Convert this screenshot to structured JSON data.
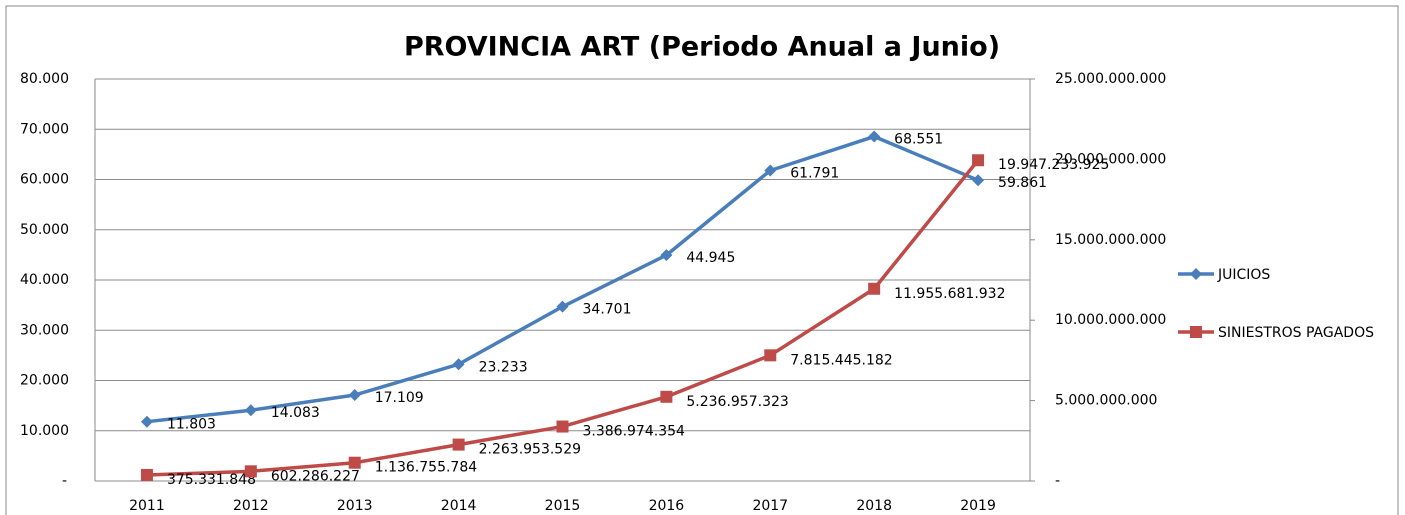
{
  "chart_data": {
    "type": "line",
    "title": "PROVINCIA ART (Periodo  Anual a Junio)",
    "categories": [
      "2011",
      "2012",
      "2013",
      "2014",
      "2015",
      "2016",
      "2017",
      "2018",
      "2019"
    ],
    "series": [
      {
        "name": "JUICIOS",
        "color": "#4a7ebb",
        "marker": "diamond",
        "values": [
          11803,
          14083,
          17109,
          23233,
          34701,
          44945,
          61791,
          68551,
          59861
        ],
        "value_labels": [
          "11.803",
          "14.083",
          "17.109",
          "23.233",
          "34.701",
          "44.945",
          "61.791",
          "68.551",
          "59.861"
        ]
      },
      {
        "name": "SINIESTROS PAGADOS",
        "color": "#be4b48",
        "marker": "square",
        "axis": "y2",
        "values": [
          375331848,
          602286227,
          1136755784,
          2263953529,
          3386974354,
          5236957323,
          7815445182,
          11955681932,
          19947233925
        ],
        "value_labels": [
          "375.331.848",
          "602.286.227",
          "1.136.755.784",
          "2.263.953.529",
          "3.386.974.354",
          "5.236.957.323",
          "7.815.445.182",
          "11.955.681.932",
          "19.947.233.925"
        ]
      }
    ],
    "ylim": [
      0,
      80000
    ],
    "yticks": [
      {
        "value": 0,
        "label": "-"
      },
      {
        "value": 10000,
        "label": "10.000"
      },
      {
        "value": 20000,
        "label": "20.000"
      },
      {
        "value": 30000,
        "label": "30.000"
      },
      {
        "value": 40000,
        "label": "40.000"
      },
      {
        "value": 50000,
        "label": "50.000"
      },
      {
        "value": 60000,
        "label": "60.000"
      },
      {
        "value": 70000,
        "label": "70.000"
      },
      {
        "value": 80000,
        "label": "80.000"
      }
    ],
    "y2lim": [
      0,
      25000000000
    ],
    "y2ticks": [
      {
        "value": 0,
        "label": "-"
      },
      {
        "value": 5000000000,
        "label": "5.000.000.000"
      },
      {
        "value": 10000000000,
        "label": "10.000.000.000"
      },
      {
        "value": 15000000000,
        "label": "15.000.000.000"
      },
      {
        "value": 20000000000,
        "label": "20.000.000.000"
      },
      {
        "value": 25000000000,
        "label": "25.000.000.000"
      }
    ],
    "grid": true,
    "legend": "right"
  }
}
